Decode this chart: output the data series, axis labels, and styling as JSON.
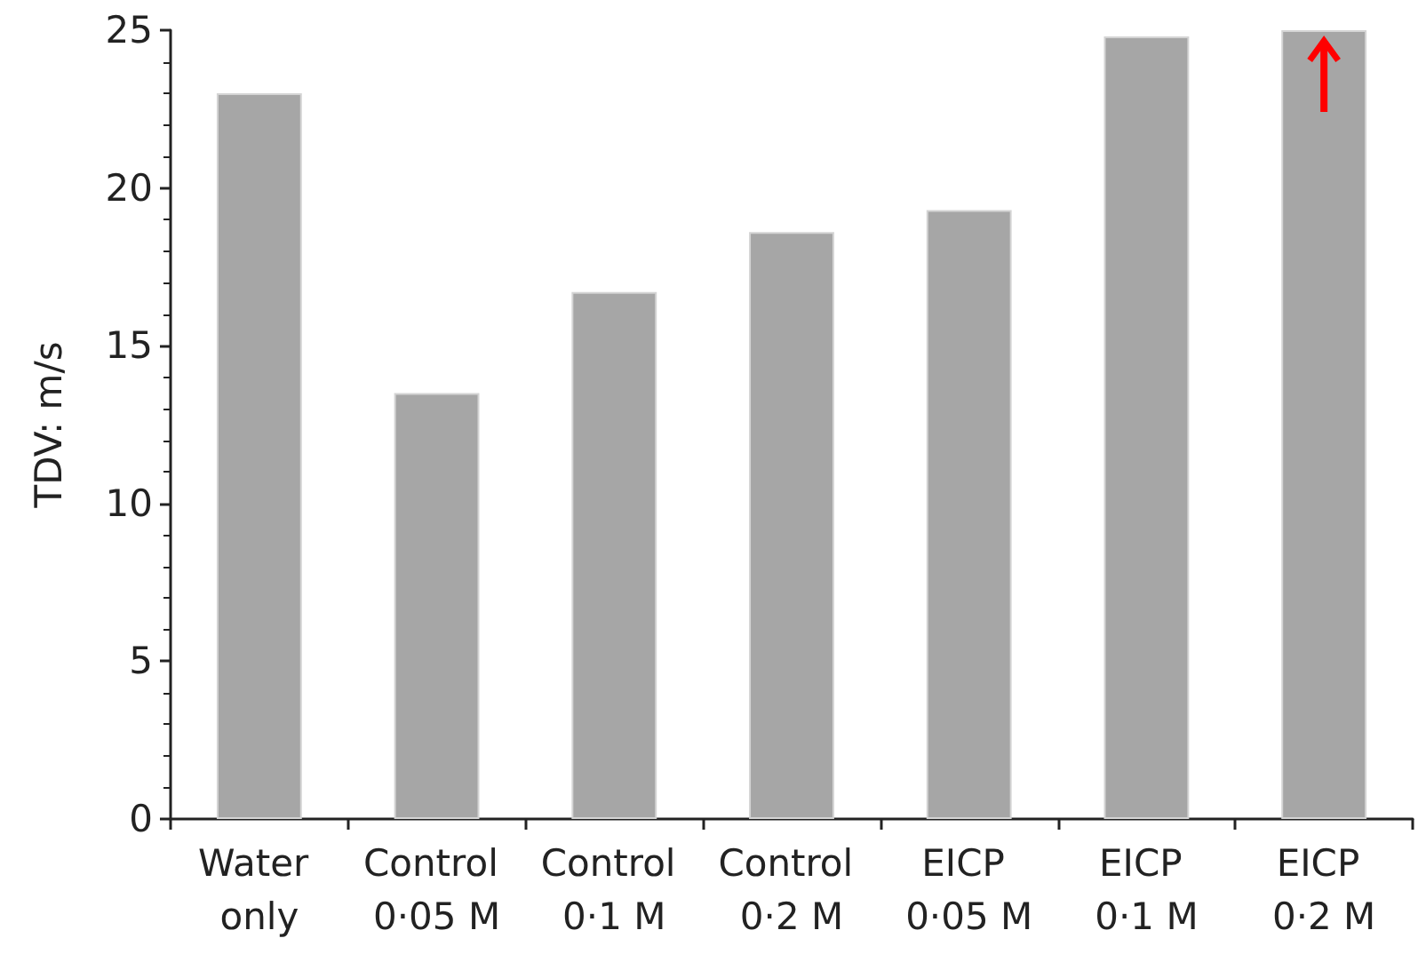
{
  "chart_data": {
    "type": "bar",
    "ylabel": "TDV: m/s",
    "categories": [
      "Water only",
      "Control 0·05 M",
      "Control 0·1 M",
      "Control 0·2 M",
      "EICP 0·05 M",
      "EICP 0·1 M",
      "EICP 0·2 M"
    ],
    "values": [
      23.0,
      13.5,
      16.7,
      18.6,
      19.3,
      24.8,
      25.0
    ],
    "color": "#a6a6a6",
    "ylim": [
      0,
      25
    ],
    "yticks": [
      0,
      5,
      10,
      15,
      20,
      25
    ],
    "grid": false
  }
}
